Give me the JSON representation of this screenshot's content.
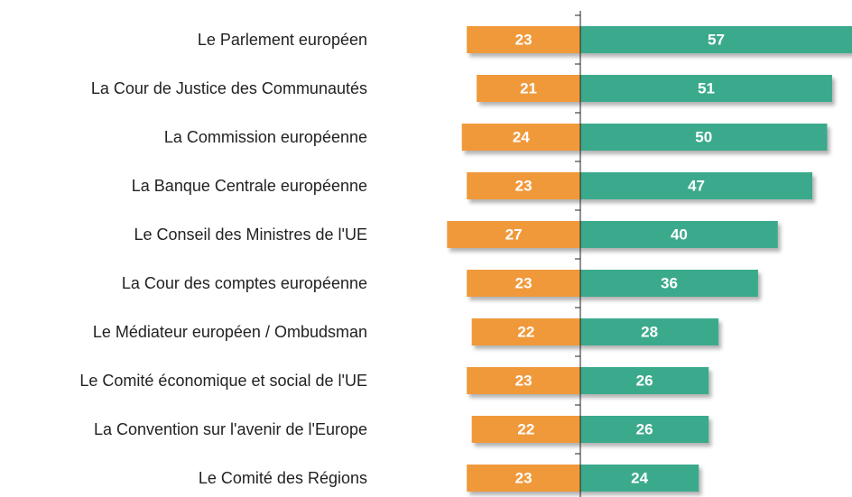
{
  "chart_data": {
    "type": "bar",
    "orientation": "horizontal",
    "layout": "diverging",
    "categories": [
      "Le Parlement européen",
      "La Cour de Justice des Communautés",
      "La Commission européenne",
      "La Banque Centrale européenne",
      "Le Conseil des Ministres de l'UE",
      "La Cour des comptes européenne",
      "Le Médiateur européen / Ombudsman",
      "Le Comité économique et social de l'UE",
      "La Convention sur l'avenir de l'Europe",
      "Le Comité des Régions"
    ],
    "series": [
      {
        "color": "#f0993a",
        "side": "left",
        "values": [
          23,
          21,
          24,
          23,
          27,
          23,
          22,
          23,
          22,
          23
        ]
      },
      {
        "color": "#3aaa8c",
        "side": "right",
        "values": [
          57,
          51,
          50,
          47,
          40,
          36,
          28,
          26,
          26,
          24
        ]
      }
    ]
  }
}
